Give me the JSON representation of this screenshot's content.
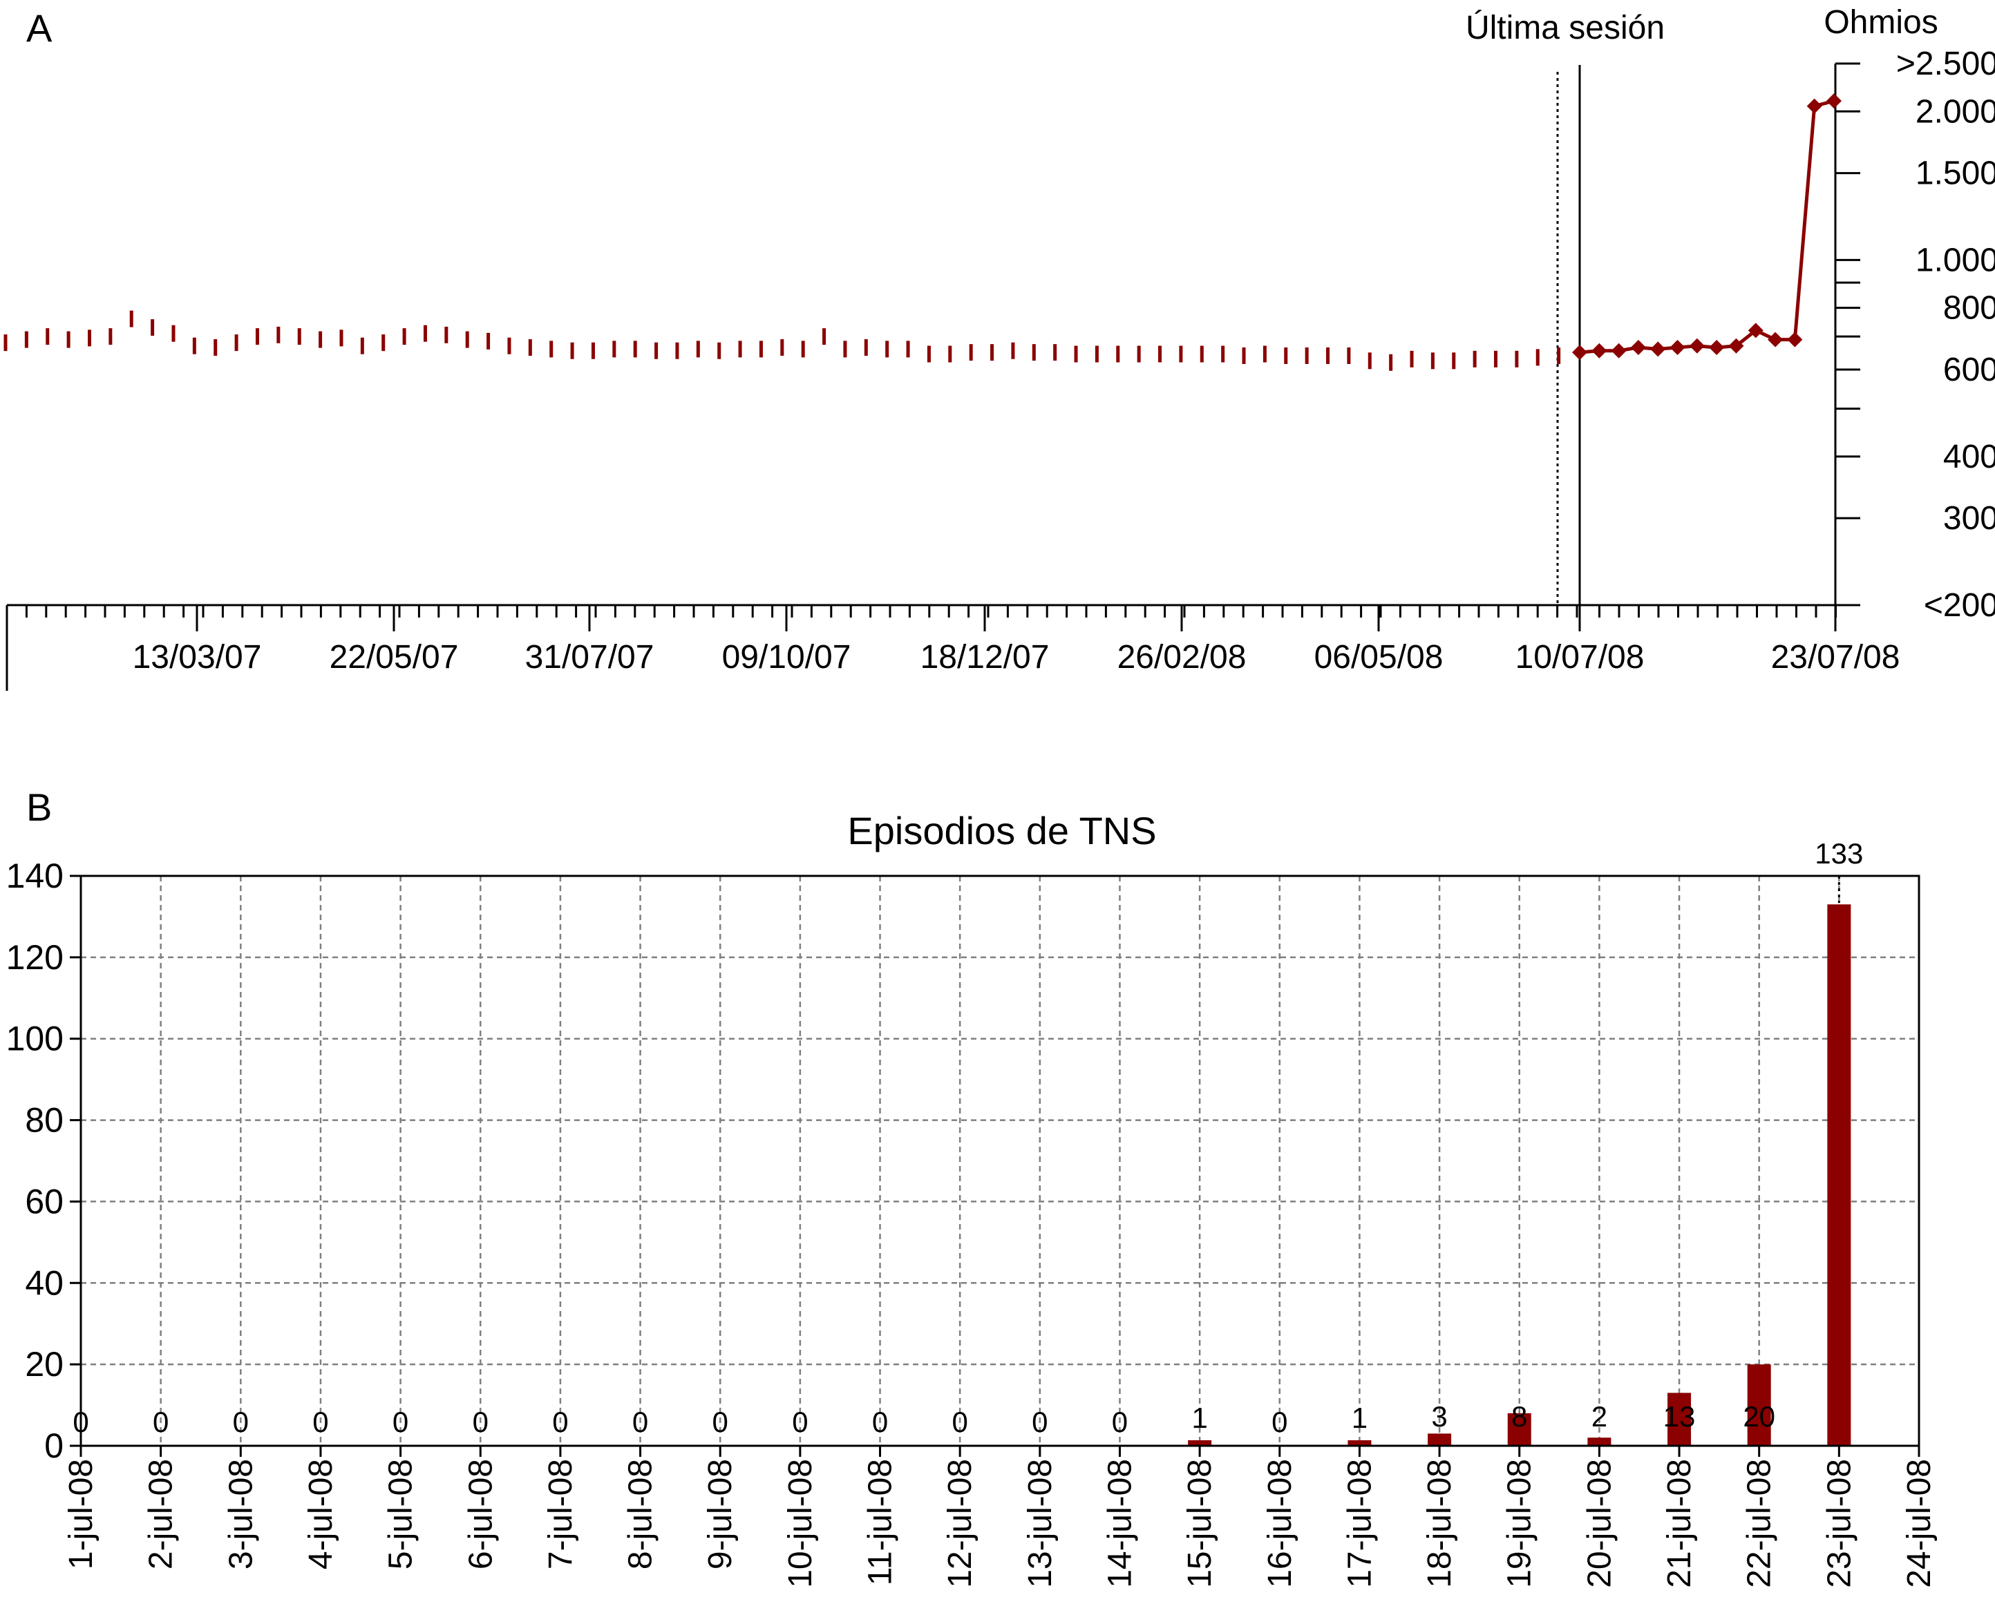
{
  "figure_colors": {
    "series": "#8b0000",
    "axis": "#000000",
    "grid": "#7f7f7f",
    "background": "#ffffff"
  },
  "panel_a": {
    "panel_label": "A",
    "y_unit_label": "Ohmios",
    "annotation": "Última sesión",
    "y_scale": "log",
    "y_ticks": [
      ">2.500",
      "2.000",
      "1.500",
      "1.000",
      "800",
      "600",
      "400",
      "300",
      "<200"
    ],
    "x_tick_labels": [
      "13/03/07",
      "22/05/07",
      "31/07/07",
      "09/10/07",
      "18/12/07",
      "26/02/08",
      "06/05/08",
      "10/07/08",
      "23/07/08"
    ]
  },
  "panel_b": {
    "panel_label": "B",
    "title": "Episodios de TNS",
    "y_ticks": [
      "0",
      "20",
      "40",
      "60",
      "80",
      "100",
      "120",
      "140"
    ],
    "x_tick_labels": [
      "1-jul-08",
      "2-jul-08",
      "3-jul-08",
      "4-jul-08",
      "5-jul-08",
      "6-jul-08",
      "7-jul-08",
      "8-jul-08",
      "9-jul-08",
      "10-jul-08",
      "11-jul-08",
      "12-jul-08",
      "13-jul-08",
      "14-jul-08",
      "15-jul-08",
      "16-jul-08",
      "17-jul-08",
      "18-jul-08",
      "19-jul-08",
      "20-jul-08",
      "21-jul-08",
      "22-jul-08",
      "23-jul-08",
      "24-jul-08"
    ]
  },
  "chart_data": [
    {
      "type": "line",
      "title": "",
      "xlabel": "",
      "ylabel": "Ohmios",
      "y_scale": "log",
      "ylim": [
        200,
        2500
      ],
      "grid": false,
      "annotations": [
        {
          "text": "Última sesión",
          "x": "10/07/08"
        }
      ],
      "series": [
        {
          "values": [
            680,
            690,
            700,
            690,
            695,
            700,
            760,
            730,
            710,
            670,
            665,
            680,
            700,
            705,
            700,
            690,
            695,
            670,
            680,
            700,
            710,
            705,
            690,
            685,
            670,
            665,
            660,
            655,
            655,
            660,
            660,
            655,
            655,
            660,
            655,
            660,
            660,
            665,
            660,
            700,
            660,
            665,
            660,
            660,
            645,
            645,
            650,
            650,
            655,
            650,
            650,
            645,
            645,
            645,
            645,
            645,
            645,
            645,
            645,
            640,
            645,
            640,
            640,
            640,
            640,
            625,
            620,
            630,
            625,
            625,
            630,
            630,
            630,
            635,
            640
          ]
        },
        {
          "values": [
            650,
            655,
            655,
            665,
            660,
            665,
            670,
            665,
            670,
            720,
            690,
            690,
            2050,
            2100
          ]
        }
      ]
    },
    {
      "type": "bar",
      "title": "Episodios de TNS",
      "xlabel": "",
      "ylabel": "",
      "ylim": [
        0,
        140
      ],
      "grid": true,
      "categories": [
        "1-jul-08",
        "2-jul-08",
        "3-jul-08",
        "4-jul-08",
        "5-jul-08",
        "6-jul-08",
        "7-jul-08",
        "8-jul-08",
        "9-jul-08",
        "10-jul-08",
        "11-jul-08",
        "12-jul-08",
        "13-jul-08",
        "14-jul-08",
        "15-jul-08",
        "16-jul-08",
        "17-jul-08",
        "18-jul-08",
        "19-jul-08",
        "20-jul-08",
        "21-jul-08",
        "22-jul-08",
        "23-jul-08",
        "24-jul-08"
      ],
      "values": [
        0,
        0,
        0,
        0,
        0,
        0,
        0,
        0,
        0,
        0,
        0,
        0,
        0,
        0,
        1,
        0,
        1,
        3,
        8,
        2,
        13,
        20,
        133,
        null
      ]
    }
  ]
}
